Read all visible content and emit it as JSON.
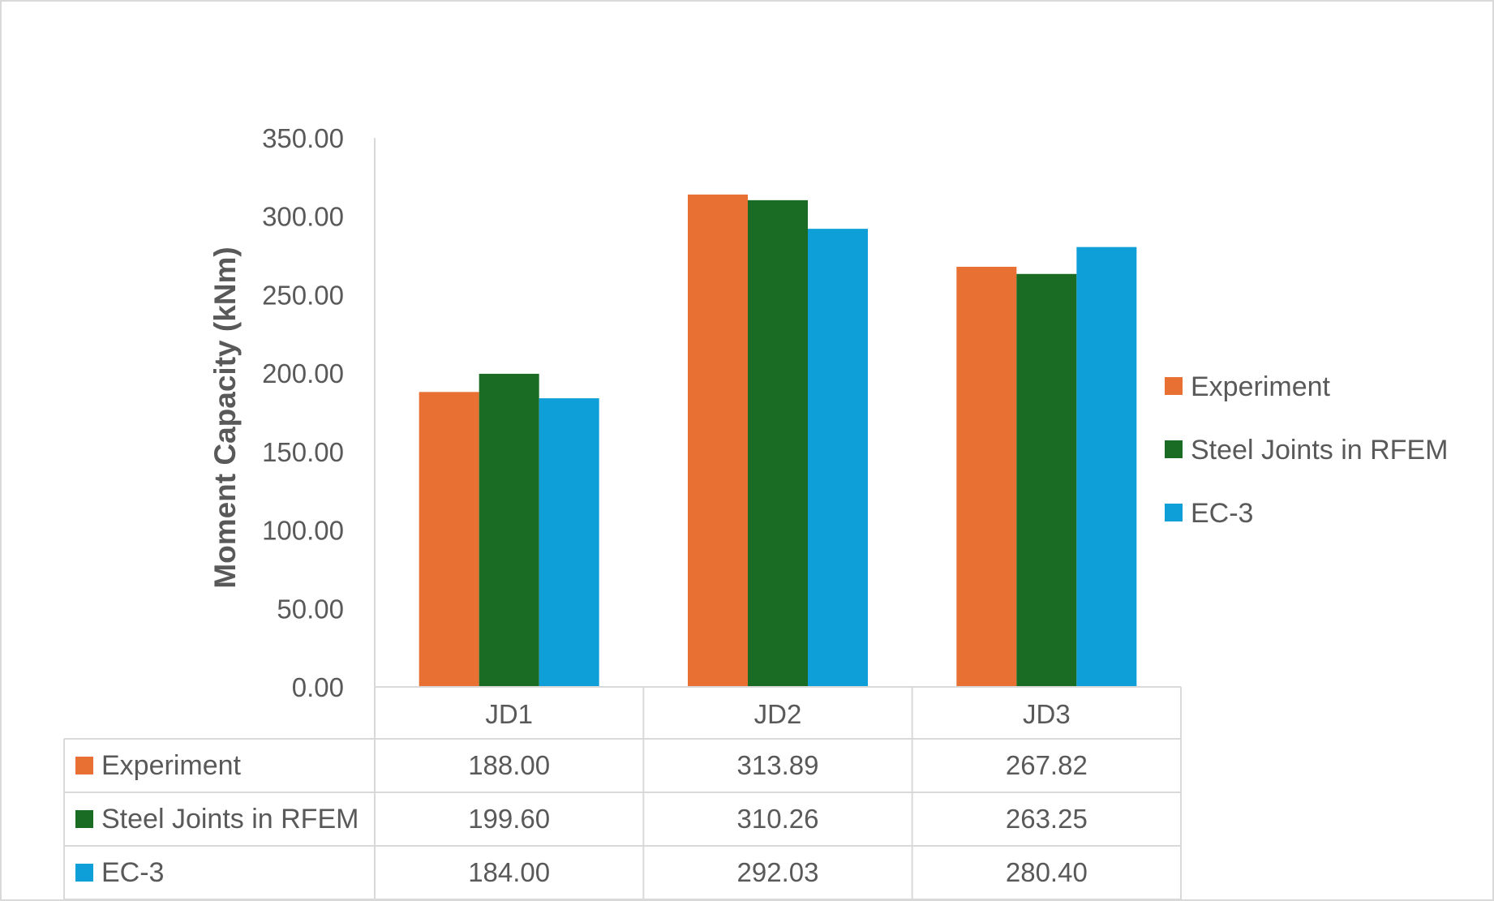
{
  "chart_data": {
    "type": "bar",
    "title": "",
    "xlabel": "",
    "ylabel": "Moment Capacity (kNm)",
    "ylim": [
      0,
      350
    ],
    "y_ticks": [
      "0.00",
      "50.00",
      "100.00",
      "150.00",
      "200.00",
      "250.00",
      "300.00",
      "350.00"
    ],
    "categories": [
      "JD1",
      "JD2",
      "JD3"
    ],
    "series": [
      {
        "name": "Experiment",
        "color": "#E87033",
        "values": [
          188.0,
          313.89,
          267.82
        ],
        "labels": [
          "188.00",
          "313.89",
          "267.82"
        ]
      },
      {
        "name": "Steel Joints in RFEM",
        "color": "#1A6B24",
        "values": [
          199.6,
          310.26,
          263.25
        ],
        "labels": [
          "199.60",
          "310.26",
          "263.25"
        ]
      },
      {
        "name": "EC-3",
        "color": "#0F9FD8",
        "values": [
          184.0,
          292.03,
          280.4
        ],
        "labels": [
          "184.00",
          "292.03",
          "280.40"
        ]
      }
    ],
    "grid": false,
    "legend_position": "right",
    "data_table": true
  }
}
